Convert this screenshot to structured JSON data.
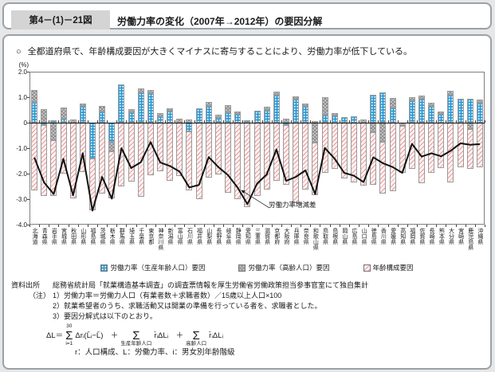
{
  "header": {
    "figure_no": "第4－(1)－21図",
    "title": "労働力率の変化（2007年→2012年）の要因分解"
  },
  "lead": {
    "marker": "○",
    "text": "全都道府県で、年齢構成要因が大きくマイナスに寄与することにより、労働力率が低下している。"
  },
  "chart_data": {
    "type": "bar",
    "subtype": "stacked-bar-with-line",
    "unit_label": "(%)",
    "ylim": [
      -4.0,
      2.0
    ],
    "ytick_labels": [
      "2.0",
      "1.0",
      "0",
      "-1.0",
      "-2.0",
      "-3.0",
      "-4.0"
    ],
    "ytick_values": [
      2.0,
      1.0,
      0.0,
      -1.0,
      -2.0,
      -3.0,
      -4.0
    ],
    "grid": "zero-line-only",
    "legend_position": "bottom",
    "categories": [
      "北海道",
      "青森県",
      "岩手県",
      "宮城県",
      "秋田県",
      "山形県",
      "福島県",
      "茨城県",
      "栃木県",
      "群馬県",
      "埼玉県",
      "千葉県",
      "東京都",
      "神奈川県",
      "新潟県",
      "富山県",
      "石川県",
      "福井県",
      "山梨県",
      "長野県",
      "岐阜県",
      "静岡県",
      "愛知県",
      "三重県",
      "滋賀県",
      "京都府",
      "大阪府",
      "兵庫県",
      "奈良県",
      "和歌山県",
      "鳥取県",
      "島根県",
      "岡山県",
      "広島県",
      "山口県",
      "徳島県",
      "香川県",
      "愛媛県",
      "高知県",
      "福岡県",
      "佐賀県",
      "長崎県",
      "熊本県",
      "大分県",
      "宮崎県",
      "鹿児島県",
      "沖縄県"
    ],
    "series": [
      {
        "key": "working-age-factor",
        "name": "労働力率（生産年齢人口）要因",
        "color": "#2f9cd6",
        "pattern": "dots",
        "css": "fill-blue",
        "values": [
          0.8,
          -0.1,
          0.08,
          0.15,
          0.0,
          0.65,
          -1.4,
          0.45,
          -0.75,
          1.5,
          0.42,
          1.2,
          1.17,
          0.26,
          0.47,
          0.0,
          -0.35,
          0.55,
          0.67,
          0.2,
          0.42,
          0.35,
          0.1,
          0.48,
          0.49,
          1.09,
          -0.1,
          0.93,
          0.65,
          0.05,
          0.31,
          0.29,
          0.21,
          0.26,
          0.0,
          1.09,
          1.19,
          0.6,
          0.0,
          0.86,
          0.93,
          0.65,
          0.35,
          1.09,
          0.93,
          0.93,
          0.78
        ]
      },
      {
        "key": "elderly-factor",
        "name": "労働力率（高齢人口）要因",
        "color": "#cccccc",
        "pattern": "crosshatch",
        "css": "fill-gray",
        "values": [
          0.48,
          0.52,
          -0.7,
          0.43,
          0.12,
          0.1,
          0.0,
          0.2,
          -0.38,
          0.0,
          0.1,
          0.15,
          0.12,
          0.1,
          0.1,
          0.16,
          0.13,
          0.0,
          0.15,
          0.1,
          0.28,
          0.1,
          0.0,
          0.0,
          0.12,
          0.13,
          0.15,
          0.1,
          0.1,
          -0.79,
          0.68,
          0.1,
          0.0,
          0.0,
          0.14,
          -0.36,
          -0.74,
          0.36,
          -0.12,
          0.13,
          0.13,
          0.12,
          0.1,
          0.15,
          0.0,
          -0.25,
          0.13
        ]
      },
      {
        "key": "age-composition-factor",
        "name": "年齢構成要因",
        "color": "#ea9a9a",
        "pattern": "diagonal",
        "css": "fill-pink",
        "values": [
          -2.65,
          -2.76,
          -2.18,
          -2.0,
          -2.97,
          -1.95,
          -2.05,
          -2.78,
          -1.85,
          -2.5,
          -2.3,
          -2.9,
          -2.05,
          -1.92,
          -2.27,
          -2.08,
          -2.32,
          -2.99,
          -2.17,
          -2.04,
          -2.76,
          -3.0,
          -3.3,
          -2.87,
          -2.64,
          -2.27,
          -2.33,
          -3.16,
          -2.62,
          -2.06,
          -1.98,
          -1.8,
          -2.18,
          -2.34,
          -2.47,
          -2.09,
          -2.04,
          -2.7,
          -1.85,
          -1.82,
          -2.39,
          -1.97,
          -1.77,
          -2.34,
          -1.74,
          -1.55,
          -1.75
        ]
      }
    ],
    "line": {
      "name": "労働力率増減差",
      "color": "#111111",
      "values": [
        -1.37,
        -2.34,
        -2.8,
        -1.42,
        -2.85,
        -1.2,
        -3.45,
        -2.13,
        -2.98,
        -1.0,
        -1.78,
        -1.55,
        -0.76,
        -1.56,
        -1.7,
        -1.92,
        -2.54,
        -2.44,
        -1.35,
        -1.74,
        -2.06,
        -2.55,
        -3.2,
        -2.39,
        -2.03,
        -1.05,
        -2.28,
        -2.13,
        -1.87,
        -2.8,
        -0.99,
        -1.41,
        -1.97,
        -2.08,
        -2.33,
        -1.36,
        -1.59,
        -1.74,
        -1.97,
        -0.83,
        -1.33,
        -1.2,
        -1.32,
        -1.1,
        -0.81,
        -0.87,
        -0.84
      ]
    }
  },
  "notes": {
    "source_label": "資料出所",
    "source_text": "総務省統計局「就業構造基本調査」の調査票情報を厚生労働省労働政策担当参事官室にて独自集計",
    "note_label": "（注）",
    "items": [
      "1）労働力率＝労働力人口（有業者数＋求職者数）／15歳以上人口×100",
      "2）就業希望者のうち、求職活動又は開業の準備を行っている者を、求職者とした。",
      "3）要因分解式は以下のとおり。"
    ],
    "formula": {
      "lhs": "ΔL＝",
      "sigma": "Σ",
      "s1_top": "30",
      "s1_bot": "i=1",
      "s1_body": "Δrᵢ(L̄ᵢ−L̄)　＋",
      "s2_bot": "生産年齢人口",
      "s2_body": "r̄ᵢΔLᵢ　＋",
      "s3_bot": "高齢人口",
      "s3_body": "r̄ᵢΔLᵢ"
    },
    "formula_legend": "r：人口構成、L：労働力率、i：男女別年齢階級"
  }
}
